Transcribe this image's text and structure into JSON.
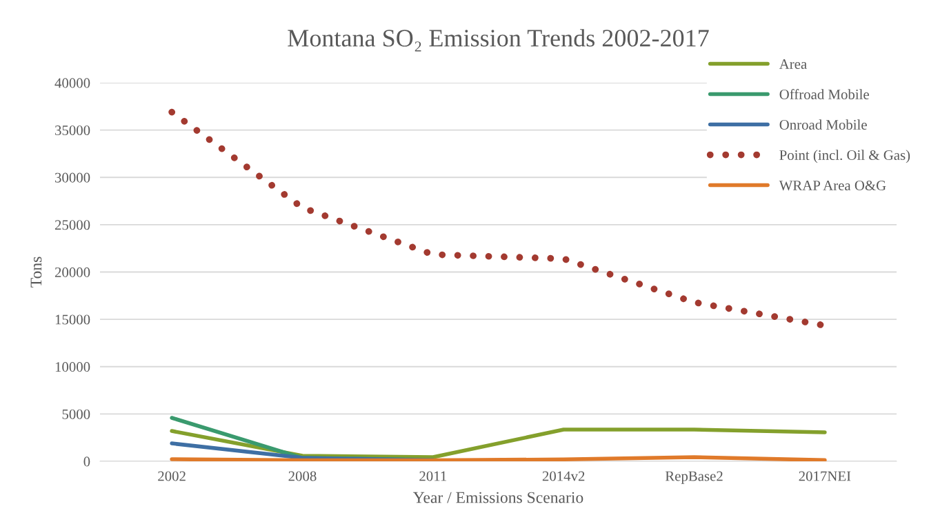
{
  "chart_data": {
    "type": "line",
    "title": "Montana SO₂ Emission Trends 2002-2017",
    "xlabel": "Year / Emissions Scenario",
    "ylabel": "Tons",
    "categories": [
      "2002",
      "2008",
      "2011",
      "2014v2",
      "RepBase2",
      "2017NEI"
    ],
    "series": [
      {
        "name": "Area",
        "color": "#84a02c",
        "values": [
          3200,
          580,
          440,
          3350,
          3350,
          3060
        ]
      },
      {
        "name": "Offroad Mobile",
        "color": "#3a9a6e",
        "values": [
          4590,
          360,
          150,
          null,
          null,
          null
        ]
      },
      {
        "name": "Onroad Mobile",
        "color": "#3e6fa4",
        "values": [
          1890,
          360,
          100,
          null,
          null,
          null
        ]
      },
      {
        "name": "Point (incl. Oil & Gas)",
        "color": "#a33a30",
        "line_style": "dotted",
        "values": [
          36900,
          26800,
          21850,
          21400,
          16800,
          14350
        ]
      },
      {
        "name": "WRAP Area O&G",
        "color": "#e07a2a",
        "values": [
          220,
          100,
          100,
          200,
          440,
          120
        ]
      }
    ],
    "ylim": [
      0,
      40000
    ],
    "yticks": [
      0,
      5000,
      10000,
      15000,
      20000,
      25000,
      30000,
      35000,
      40000
    ],
    "grid": "y",
    "legend": "top right",
    "line_style": "solid",
    "marker": "none"
  }
}
